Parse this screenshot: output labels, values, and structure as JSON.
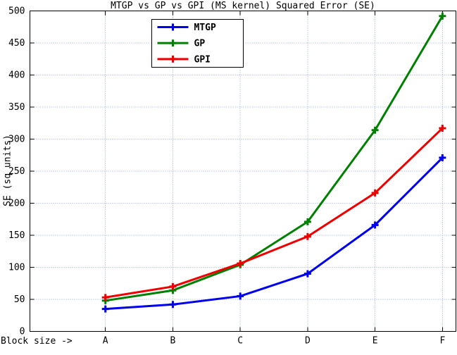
{
  "chart_data": {
    "type": "line",
    "title": "MTGP vs GP vs GPI (MS kernel) Squared Error (SE)",
    "xlabel": "Block size ->",
    "ylabel": "SE (sq units)",
    "categories": [
      "A",
      "B",
      "C",
      "D",
      "E",
      "F"
    ],
    "series": [
      {
        "name": "MTGP",
        "color": "#0000ee",
        "values": [
          35,
          42,
          55,
          90,
          166,
          271
        ]
      },
      {
        "name": "GP",
        "color": "#008000",
        "values": [
          48,
          64,
          104,
          171,
          314,
          492
        ]
      },
      {
        "name": "GPI",
        "color": "#ee0000",
        "values": [
          53,
          70,
          106,
          148,
          216,
          317
        ]
      }
    ],
    "ylim": [
      0,
      500
    ],
    "ytick_step": 50,
    "marker": "plus",
    "grid": true,
    "grid_color": "#93aad8",
    "axis_color": "#000000",
    "legend_position": "top-inside",
    "legend_entries": [
      "MTGP",
      "GP",
      "GPI"
    ]
  }
}
